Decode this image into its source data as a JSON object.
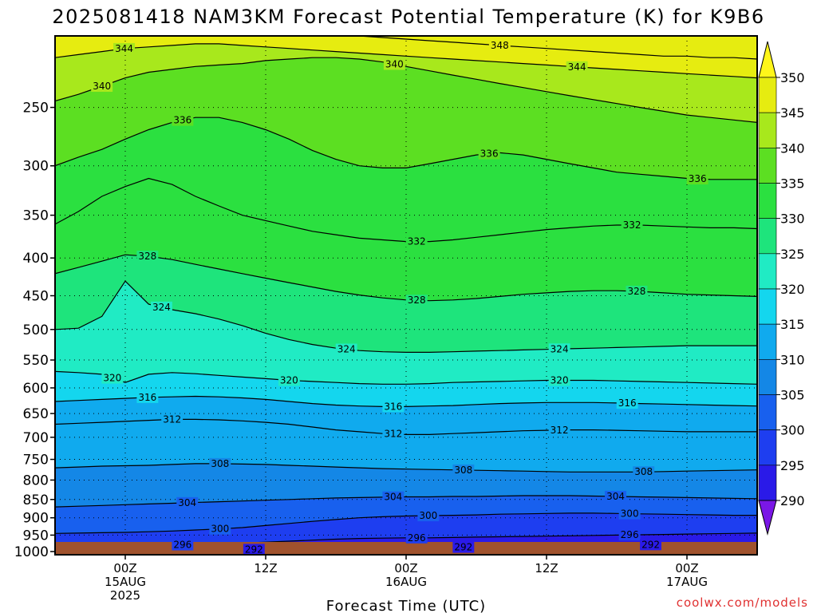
{
  "chart_data": {
    "type": "contour",
    "title": "2025081418 NAM3KM Forecast Potential Temperature (K) for K9B6",
    "xlabel": "Forecast Time (UTC)",
    "ylabel": "",
    "credit": "coolwx.com/models",
    "x_ticks": [
      {
        "hour": 6,
        "lines": [
          "00Z",
          "15AUG",
          "2025"
        ]
      },
      {
        "hour": 18,
        "lines": [
          "12Z"
        ]
      },
      {
        "hour": 30,
        "lines": [
          "00Z",
          "16AUG"
        ]
      },
      {
        "hour": 42,
        "lines": [
          "12Z"
        ]
      },
      {
        "hour": 54,
        "lines": [
          "00Z",
          "17AUG"
        ]
      }
    ],
    "xlim": [
      0,
      60
    ],
    "y_ticks": [
      250,
      300,
      350,
      400,
      450,
      500,
      550,
      600,
      650,
      700,
      750,
      800,
      850,
      900,
      950,
      1000
    ],
    "ylim": [
      1010,
      200
    ],
    "y_scale": "log",
    "colorbar": {
      "levels": [
        290,
        295,
        300,
        305,
        310,
        315,
        320,
        325,
        330,
        335,
        340,
        345,
        350
      ],
      "colors": [
        "#7a17e6",
        "#2a1ae8",
        "#1e3ef0",
        "#1860ee",
        "#1487e6",
        "#10aaee",
        "#14d6ee",
        "#20ebc4",
        "#1ee47c",
        "#2be040",
        "#5cdf22",
        "#a8e81c",
        "#e6ec10",
        "#fff61a"
      ],
      "unit": "K"
    },
    "time_hours": [
      0,
      2,
      4,
      6,
      8,
      10,
      12,
      14,
      16,
      18,
      20,
      22,
      24,
      26,
      28,
      30,
      32,
      34,
      36,
      38,
      40,
      42,
      44,
      46,
      48,
      50,
      52,
      54,
      56,
      58,
      60
    ],
    "isentropes": [
      {
        "theta": 292,
        "pressure": [
          1002,
          1001,
          1000,
          999,
          998,
          997,
          996,
          995,
          994,
          993,
          992,
          991,
          990,
          989,
          988,
          988,
          988,
          987,
          986,
          985,
          984,
          983,
          982,
          981,
          980,
          979,
          978,
          978,
          977,
          977,
          976
        ]
      },
      {
        "theta": 296,
        "pressure": [
          985,
          984,
          983,
          982,
          981,
          980,
          978,
          976,
          974,
          971,
          968,
          965,
          962,
          960,
          959,
          958,
          958,
          957,
          956,
          955,
          954,
          953,
          952,
          951,
          950,
          949,
          948,
          947,
          946,
          945,
          944
        ]
      },
      {
        "theta": 300,
        "pressure": [
          945,
          944,
          943,
          942,
          940,
          938,
          935,
          932,
          928,
          922,
          916,
          910,
          905,
          900,
          897,
          895,
          894,
          893,
          892,
          890,
          889,
          888,
          887,
          887,
          888,
          889,
          890,
          891,
          892,
          893,
          893
        ]
      },
      {
        "theta": 304,
        "pressure": [
          870,
          868,
          866,
          864,
          862,
          860,
          858,
          856,
          854,
          852,
          850,
          848,
          846,
          845,
          844,
          843,
          843,
          842,
          842,
          841,
          840,
          840,
          840,
          841,
          842,
          843,
          844,
          845,
          846,
          847,
          848
        ]
      },
      {
        "theta": 308,
        "pressure": [
          770,
          768,
          766,
          765,
          764,
          762,
          760,
          760,
          761,
          762,
          764,
          766,
          768,
          770,
          772,
          773,
          774,
          775,
          776,
          777,
          778,
          779,
          780,
          780,
          780,
          780,
          779,
          778,
          777,
          776,
          775
        ]
      },
      {
        "theta": 312,
        "pressure": [
          672,
          670,
          668,
          666,
          664,
          662,
          662,
          663,
          665,
          668,
          672,
          678,
          684,
          688,
          692,
          694,
          694,
          692,
          690,
          688,
          686,
          685,
          684,
          684,
          685,
          686,
          687,
          688,
          688,
          688,
          688
        ]
      },
      {
        "theta": 316,
        "pressure": [
          626,
          624,
          622,
          620,
          618,
          617,
          616,
          617,
          619,
          622,
          626,
          630,
          633,
          635,
          636,
          636,
          635,
          634,
          632,
          630,
          629,
          628,
          628,
          628,
          629,
          630,
          631,
          632,
          633,
          634,
          635
        ]
      },
      {
        "theta": 320,
        "pressure": [
          570,
          572,
          575,
          590,
          575,
          572,
          574,
          577,
          580,
          583,
          586,
          588,
          590,
          592,
          593,
          593,
          592,
          590,
          589,
          588,
          587,
          586,
          586,
          586,
          587,
          588,
          589,
          590,
          591,
          592,
          593
        ]
      },
      {
        "theta": 324,
        "pressure": [
          500,
          498,
          480,
          430,
          462,
          470,
          476,
          484,
          494,
          506,
          516,
          524,
          530,
          534,
          536,
          537,
          537,
          536,
          535,
          534,
          533,
          532,
          531,
          530,
          529,
          528,
          527,
          526,
          526,
          526,
          526
        ]
      },
      {
        "theta": 328,
        "pressure": [
          420,
          412,
          404,
          396,
          398,
          402,
          408,
          414,
          420,
          426,
          432,
          438,
          444,
          449,
          453,
          456,
          457,
          456,
          454,
          451,
          448,
          446,
          444,
          443,
          443,
          444,
          446,
          448,
          449,
          450,
          451
        ]
      },
      {
        "theta": 332,
        "pressure": [
          360,
          346,
          330,
          320,
          312,
          318,
          330,
          340,
          350,
          356,
          362,
          368,
          372,
          376,
          378,
          380,
          380,
          378,
          375,
          372,
          369,
          366,
          364,
          362,
          361,
          361,
          362,
          363,
          364,
          364,
          365
        ]
      },
      {
        "theta": 336,
        "pressure": [
          300,
          292,
          285,
          276,
          268,
          262,
          258,
          258,
          262,
          268,
          276,
          286,
          294,
          300,
          302,
          302,
          298,
          294,
          290,
          288,
          290,
          294,
          298,
          302,
          306,
          308,
          310,
          312,
          313,
          313,
          313
        ]
      },
      {
        "theta": 340,
        "pressure": [
          245,
          240,
          234,
          228,
          224,
          222,
          220,
          219,
          218,
          216,
          215,
          214,
          214,
          215,
          217,
          220,
          223,
          226,
          229,
          232,
          235,
          238,
          241,
          244,
          247,
          250,
          253,
          256,
          258,
          260,
          262
        ]
      },
      {
        "theta": 344,
        "pressure": [
          214,
          212,
          210,
          208,
          207,
          206,
          205,
          205,
          206,
          207,
          208,
          209,
          210,
          211,
          212,
          213,
          214,
          215,
          216,
          217,
          218,
          219,
          220,
          221,
          222,
          223,
          224,
          225,
          226,
          227,
          228
        ]
      },
      {
        "theta": 348,
        "pressure": [
          197,
          197,
          197,
          197,
          197,
          197,
          197,
          197,
          197,
          197,
          197,
          198,
          199,
          200,
          201,
          202,
          203,
          204,
          205,
          206,
          207,
          208,
          209,
          210,
          211,
          212,
          213,
          213,
          214,
          214,
          215
        ]
      }
    ],
    "contour_labels": [
      {
        "theta": 344,
        "hour": 5.9
      },
      {
        "theta": 340,
        "hour": 4.0
      },
      {
        "theta": 336,
        "hour": 10.9
      },
      {
        "theta": 332,
        "hour": 30.9
      },
      {
        "theta": 328,
        "hour": 7.9
      },
      {
        "theta": 324,
        "hour": 9.1
      },
      {
        "theta": 320,
        "hour": 4.9
      },
      {
        "theta": 316,
        "hour": 7.9
      },
      {
        "theta": 312,
        "hour": 10.0
      },
      {
        "theta": 308,
        "hour": 14.1
      },
      {
        "theta": 304,
        "hour": 11.3
      },
      {
        "theta": 300,
        "hour": 14.1
      },
      {
        "theta": 296,
        "hour": 10.9
      },
      {
        "theta": 292,
        "hour": 17.0
      },
      {
        "theta": 348,
        "hour": 38.0
      },
      {
        "theta": 340,
        "hour": 29.0
      },
      {
        "theta": 344,
        "hour": 44.6
      },
      {
        "theta": 336,
        "hour": 37.1
      },
      {
        "theta": 332,
        "hour": 49.3
      },
      {
        "theta": 328,
        "hour": 30.9
      },
      {
        "theta": 328,
        "hour": 49.7
      },
      {
        "theta": 324,
        "hour": 24.9
      },
      {
        "theta": 324,
        "hour": 43.1
      },
      {
        "theta": 320,
        "hour": 20.0
      },
      {
        "theta": 320,
        "hour": 43.1
      },
      {
        "theta": 316,
        "hour": 28.9
      },
      {
        "theta": 316,
        "hour": 48.9
      },
      {
        "theta": 312,
        "hour": 28.9
      },
      {
        "theta": 312,
        "hour": 43.1
      },
      {
        "theta": 308,
        "hour": 34.9
      },
      {
        "theta": 308,
        "hour": 50.3
      },
      {
        "theta": 304,
        "hour": 28.9
      },
      {
        "theta": 304,
        "hour": 47.9
      },
      {
        "theta": 300,
        "hour": 31.9
      },
      {
        "theta": 300,
        "hour": 49.1
      },
      {
        "theta": 296,
        "hour": 30.9
      },
      {
        "theta": 296,
        "hour": 49.1
      },
      {
        "theta": 292,
        "hour": 34.9
      },
      {
        "theta": 292,
        "hour": 50.9
      },
      {
        "theta": 336,
        "hour": 54.9
      }
    ],
    "ground": {
      "color": "#a0522d"
    },
    "grid": "dotted"
  }
}
